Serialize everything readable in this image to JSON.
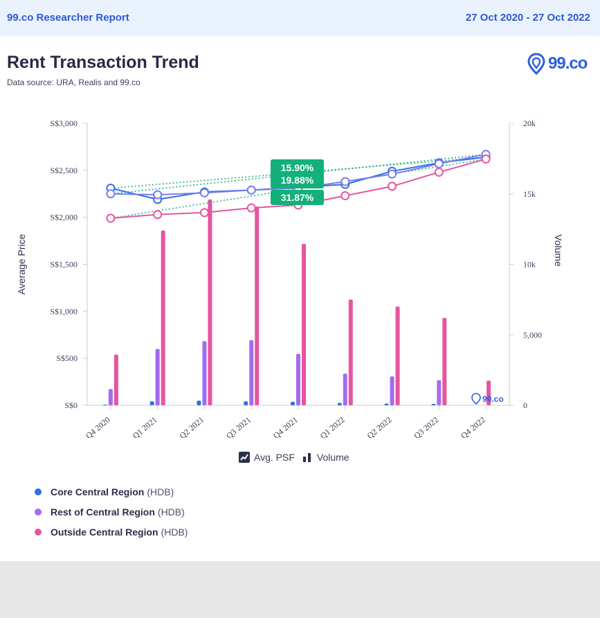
{
  "header": {
    "report_title": "99.co Researcher Report",
    "date_range": "27 Oct 2020 - 27 Oct 2022"
  },
  "page": {
    "title": "Rent Transaction Trend",
    "subtitle": "Data source: URA, Realis and 99.co",
    "logo_text": "99.co"
  },
  "legend_toggles": [
    {
      "label": "Avg. PSF",
      "icon": "line-chart-icon"
    },
    {
      "label": "Volume",
      "icon": "bar-chart-icon"
    }
  ],
  "regions": [
    {
      "name": "Core Central Region",
      "suffix": "(HDB)",
      "color": "#2f6fe8"
    },
    {
      "name": "Rest of Central Region",
      "suffix": "(HDB)",
      "color": "#a46bf0"
    },
    {
      "name": "Outside Central Region",
      "suffix": "(HDB)",
      "color": "#e6559f"
    }
  ],
  "chart_data": {
    "type": "bar+line",
    "categories": [
      "Q4 2020",
      "Q1 2021",
      "Q2 2021",
      "Q3 2021",
      "Q4 2021",
      "Q1 2022",
      "Q2 2022",
      "Q3 2022",
      "Q4 2022"
    ],
    "left_axis": {
      "label": "Average Price",
      "ylim": [
        0,
        3000
      ],
      "ticks": [
        "S$0",
        "S$500",
        "S$1,000",
        "S$1,500",
        "S$2,000",
        "S$2,500",
        "S$3,000"
      ],
      "tick_values": [
        0,
        500,
        1000,
        1500,
        2000,
        2500,
        3000
      ]
    },
    "right_axis": {
      "label": "Volume",
      "ylim": [
        0,
        20000
      ],
      "ticks": [
        "0",
        "5,000",
        "10k",
        "15k",
        "20k"
      ],
      "tick_values": [
        0,
        5000,
        10000,
        15000,
        20000
      ]
    },
    "volume_series": [
      {
        "name": "Core Central Region",
        "color": "#2f6fe8",
        "values": [
          50,
          280,
          330,
          280,
          250,
          170,
          120,
          100,
          0
        ]
      },
      {
        "name": "Rest of Central Region",
        "color": "#a46bf0",
        "values": [
          1150,
          4000,
          4550,
          4620,
          3650,
          2250,
          2050,
          1780,
          0
        ]
      },
      {
        "name": "Outside Central Region",
        "color": "#e6559f",
        "values": [
          3600,
          12400,
          14600,
          14100,
          11450,
          7500,
          7000,
          6200,
          1750
        ]
      }
    ],
    "price_series": [
      {
        "name": "Core Central Region",
        "color": "#2f6fe8",
        "values": [
          2310,
          2190,
          2270,
          2290,
          2320,
          2350,
          2490,
          2580,
          2640
        ]
      },
      {
        "name": "Rest of Central Region",
        "color": "#7a7cf0",
        "values": [
          2250,
          2240,
          2260,
          2290,
          2310,
          2380,
          2460,
          2570,
          2670
        ]
      },
      {
        "name": "Outside Central Region",
        "color": "#e6559f",
        "values": [
          1990,
          2030,
          2050,
          2100,
          2130,
          2230,
          2330,
          2480,
          2620
        ]
      }
    ],
    "growth_labels": [
      "15.90%",
      "19.88%",
      "31.87%"
    ],
    "watermark": "99.co"
  }
}
